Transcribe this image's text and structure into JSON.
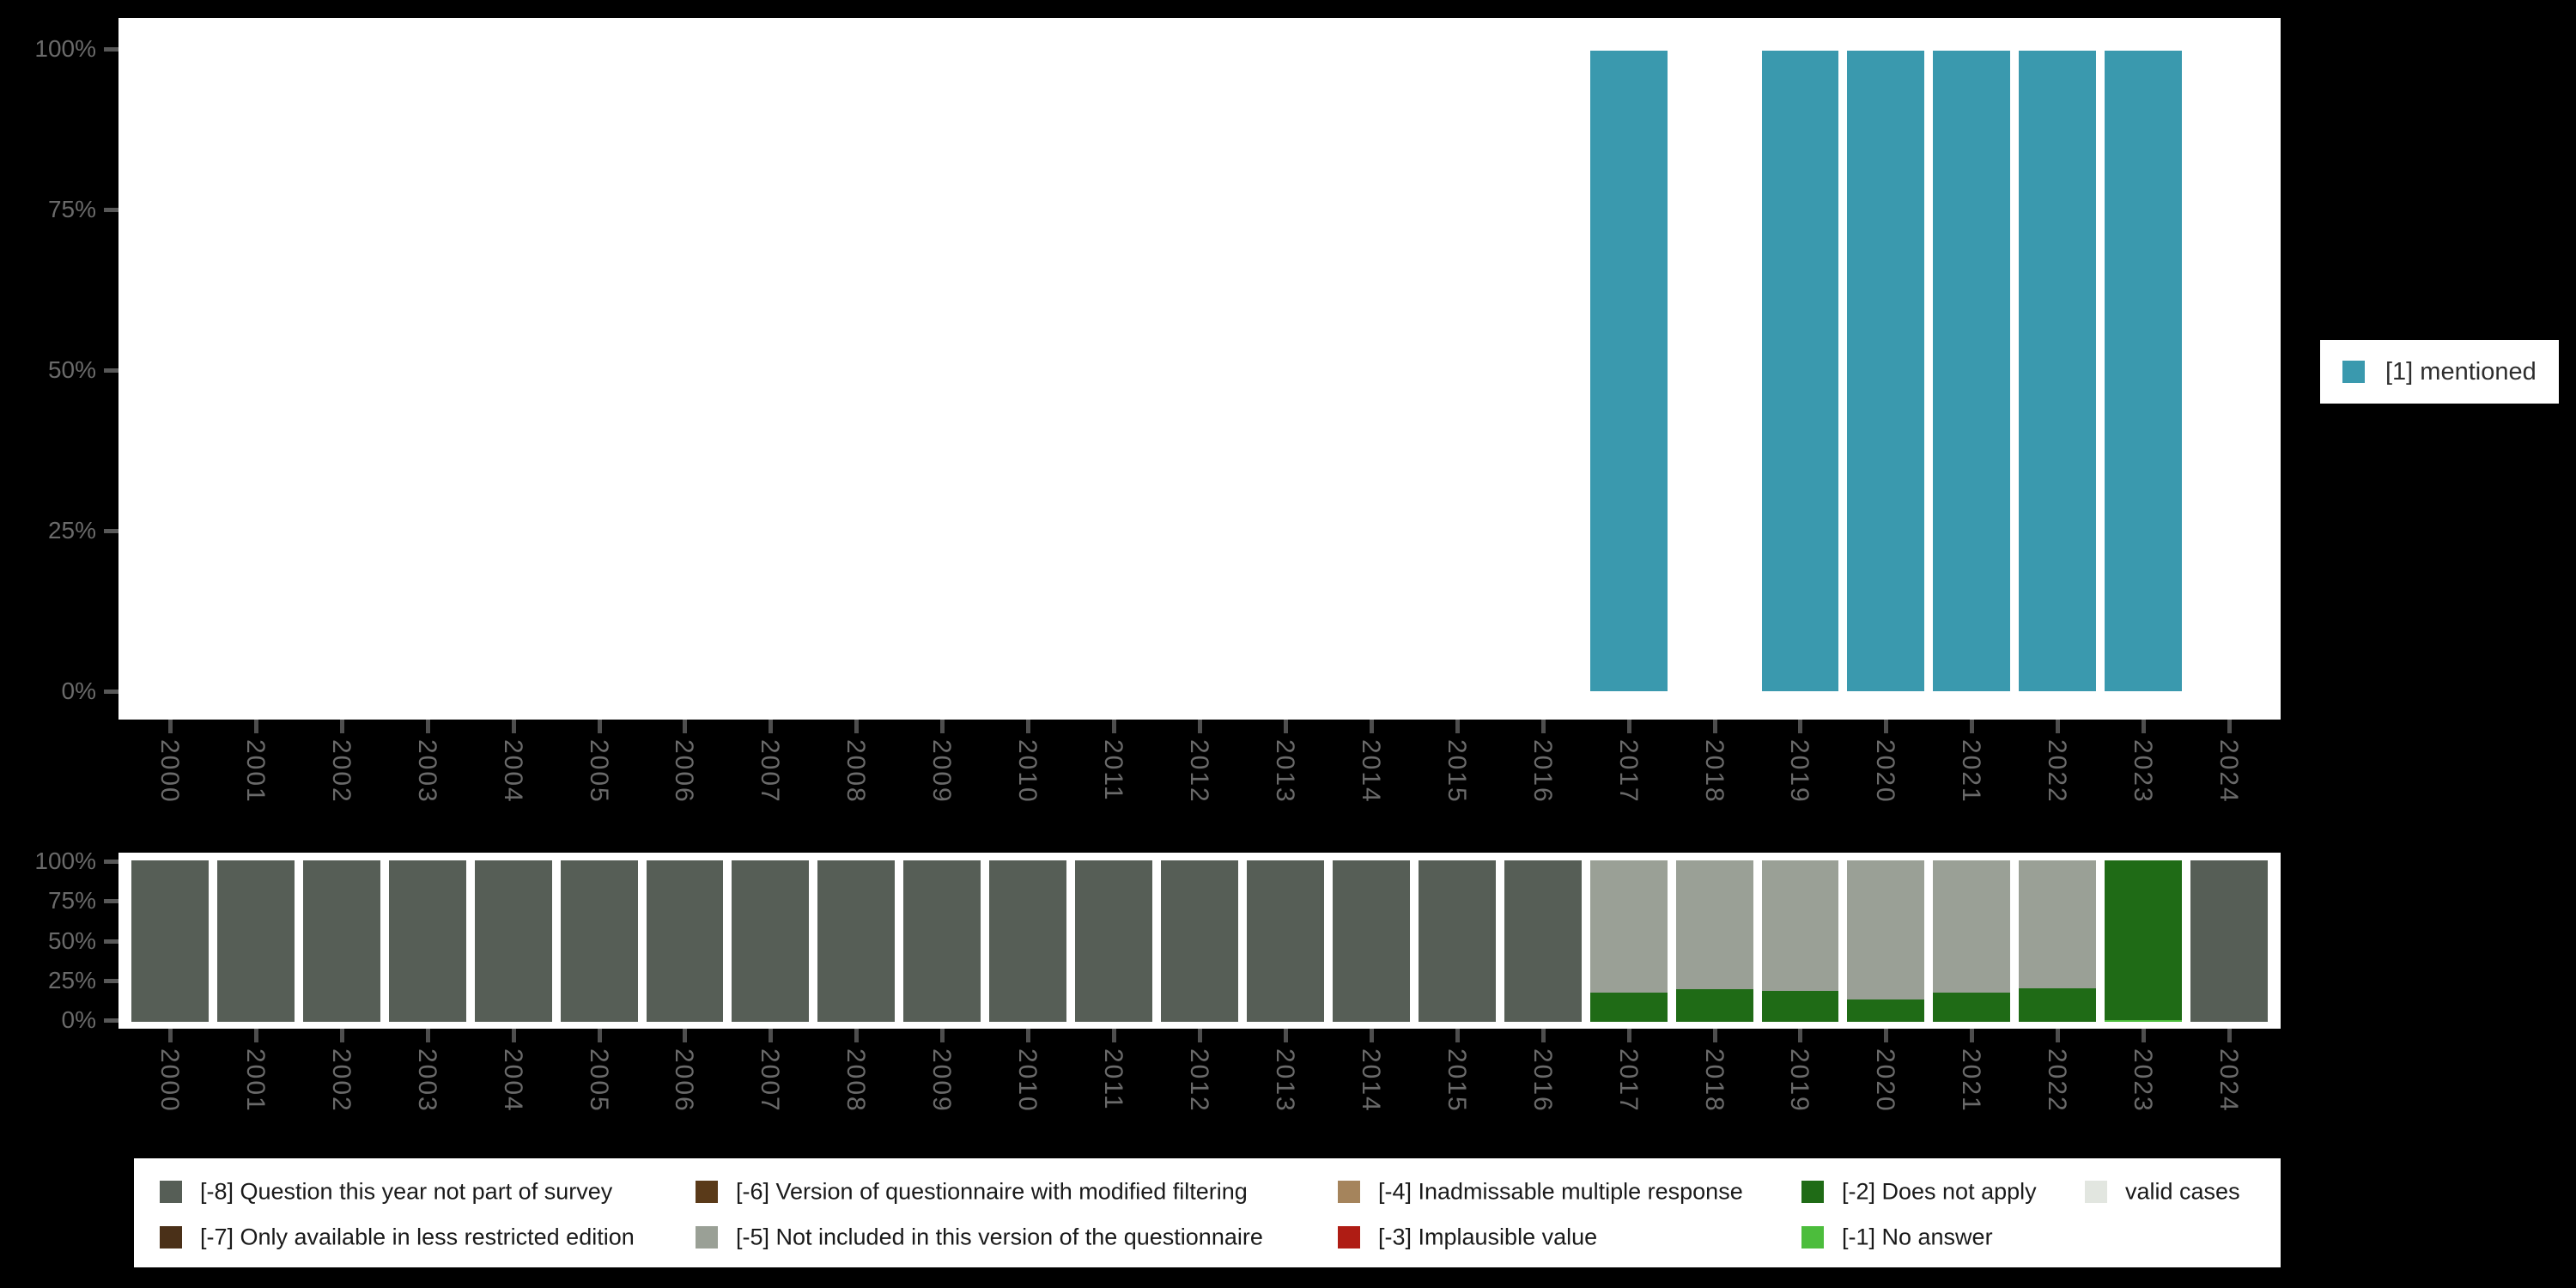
{
  "background_color": "#000000",
  "plot_background_color": "#ffffff",
  "accent_teal": "#3a99ae",
  "chart_data": [
    {
      "name": "availability-percentages",
      "type": "bar",
      "title": "",
      "xlabel": "",
      "ylabel": "",
      "ylim": [
        0,
        100
      ],
      "grid": false,
      "y_tick_labels": [
        "100%",
        "75%",
        "50%",
        "25%",
        "0%"
      ],
      "categories": [
        "2000",
        "2001",
        "2002",
        "2003",
        "2004",
        "2005",
        "2006",
        "2007",
        "2008",
        "2009",
        "2010",
        "2011",
        "2012",
        "2013",
        "2014",
        "2015",
        "2016",
        "2017",
        "2018",
        "2019",
        "2020",
        "2021",
        "2022",
        "2023",
        "2024"
      ],
      "series": [
        {
          "name": "[1] mentioned",
          "color": "#3a99ae",
          "values": [
            null,
            null,
            null,
            null,
            null,
            null,
            null,
            null,
            null,
            null,
            null,
            null,
            null,
            null,
            null,
            null,
            null,
            100,
            null,
            100,
            100,
            100,
            100,
            100,
            null
          ]
        }
      ],
      "legend_position": "right"
    },
    {
      "name": "missing-values-distribution",
      "type": "stacked-bar",
      "title": "",
      "xlabel": "",
      "ylabel": "",
      "ylim": [
        0,
        100
      ],
      "grid": false,
      "stack_order": "bottom-to-top",
      "y_tick_labels": [
        "100%",
        "75%",
        "50%",
        "25%",
        "0%"
      ],
      "categories": [
        "2000",
        "2001",
        "2002",
        "2003",
        "2004",
        "2005",
        "2006",
        "2007",
        "2008",
        "2009",
        "2010",
        "2011",
        "2012",
        "2013",
        "2014",
        "2015",
        "2016",
        "2017",
        "2018",
        "2019",
        "2020",
        "2021",
        "2022",
        "2023",
        "2024"
      ],
      "series": [
        {
          "name": "[-1] No answer",
          "color": "#4cbd3c",
          "values": [
            0,
            0,
            0,
            0,
            0,
            0,
            0,
            0,
            0,
            0,
            0,
            0,
            0,
            0,
            0,
            0,
            0,
            0,
            0,
            0,
            0,
            0,
            0,
            1,
            0
          ]
        },
        {
          "name": "[-2] Does not apply",
          "color": "#1f6b16",
          "values": [
            0,
            0,
            0,
            0,
            0,
            0,
            0,
            0,
            0,
            0,
            0,
            0,
            0,
            0,
            0,
            0,
            0,
            18,
            20,
            19,
            14,
            18,
            21,
            99,
            0
          ]
        },
        {
          "name": "[-5] Not included in this version of the questionnaire",
          "color": "#9aa096",
          "values": [
            0,
            0,
            0,
            0,
            0,
            0,
            0,
            0,
            0,
            0,
            0,
            0,
            0,
            0,
            0,
            0,
            0,
            82,
            80,
            81,
            86,
            82,
            79,
            0,
            0
          ]
        },
        {
          "name": "[-8] Question this year not part of survey",
          "color": "#565e56",
          "values": [
            100,
            100,
            100,
            100,
            100,
            100,
            100,
            100,
            100,
            100,
            100,
            100,
            100,
            100,
            100,
            100,
            100,
            0,
            0,
            0,
            0,
            0,
            0,
            0,
            100
          ]
        }
      ],
      "legend_position": "bottom"
    }
  ],
  "legend_right": {
    "label": "[1] mentioned",
    "color": "#3a99ae"
  },
  "legend_bottom": {
    "items": [
      {
        "label": "[-8] Question this year not part of survey",
        "color": "#565e56",
        "row": 0,
        "col": 0
      },
      {
        "label": "[-7] Only available in less restricted edition",
        "color": "#4a3018",
        "row": 1,
        "col": 0
      },
      {
        "label": "[-6] Version of questionnaire with modified filtering",
        "color": "#5a3a19",
        "row": 0,
        "col": 1
      },
      {
        "label": "[-5] Not included in this version of the questionnaire",
        "color": "#9aa096",
        "row": 1,
        "col": 1
      },
      {
        "label": "[-4] Inadmissable multiple response",
        "color": "#a5845c",
        "row": 0,
        "col": 2
      },
      {
        "label": "[-3] Implausible value",
        "color": "#af1c14",
        "row": 1,
        "col": 2
      },
      {
        "label": "[-2] Does not apply",
        "color": "#1f6b16",
        "row": 0,
        "col": 3
      },
      {
        "label": "[-1] No answer",
        "color": "#4cbd3c",
        "row": 1,
        "col": 3
      },
      {
        "label": "valid cases",
        "color": "#e2e6e0",
        "row": 0,
        "col": 4
      }
    ]
  }
}
